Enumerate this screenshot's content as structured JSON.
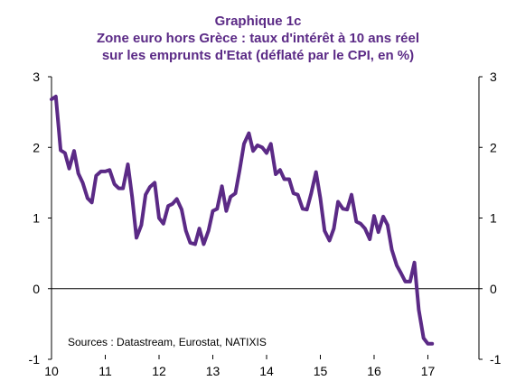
{
  "chart_data": {
    "type": "line",
    "title_lines": [
      "Graphique 1c",
      "Zone euro hors Grèce : taux d'intérêt à 10 ans réel",
      "sur les emprunts d'Etat (déflaté par le CPI, en %)"
    ],
    "source": "Sources : Datastream, Eurostat, NATIXIS",
    "x_tick_labels": [
      "10",
      "11",
      "12",
      "13",
      "14",
      "15",
      "16",
      "17"
    ],
    "y_tick_labels": [
      "3",
      "2",
      "1",
      "0",
      "-1"
    ],
    "y_ticks": [
      3,
      2,
      1,
      0,
      -1
    ],
    "xlim": [
      2010.0,
      2017.95
    ],
    "ylim": [
      -1,
      3
    ],
    "grid": false,
    "series": [
      {
        "color": "#5b2a86",
        "x": [
          2010.0,
          2010.08,
          2010.17,
          2010.25,
          2010.33,
          2010.42,
          2010.5,
          2010.58,
          2010.67,
          2010.75,
          2010.83,
          2010.92,
          2011.0,
          2011.08,
          2011.17,
          2011.25,
          2011.33,
          2011.42,
          2011.5,
          2011.58,
          2011.67,
          2011.75,
          2011.83,
          2011.92,
          2012.0,
          2012.08,
          2012.17,
          2012.25,
          2012.33,
          2012.42,
          2012.5,
          2012.58,
          2012.67,
          2012.75,
          2012.83,
          2012.92,
          2013.0,
          2013.08,
          2013.17,
          2013.25,
          2013.33,
          2013.42,
          2013.5,
          2013.58,
          2013.67,
          2013.75,
          2013.83,
          2013.92,
          2014.0,
          2014.08,
          2014.17,
          2014.25,
          2014.33,
          2014.42,
          2014.5,
          2014.58,
          2014.67,
          2014.75,
          2014.83,
          2014.92,
          2015.0,
          2015.08,
          2015.17,
          2015.25,
          2015.33,
          2015.42,
          2015.5,
          2015.58,
          2015.67,
          2015.75,
          2015.83,
          2015.92,
          2016.0,
          2016.08,
          2016.17,
          2016.25,
          2016.33,
          2016.42,
          2016.5,
          2016.58,
          2016.67,
          2016.75,
          2016.83,
          2016.92,
          2017.0,
          2017.08
        ],
        "values": [
          2.68,
          2.72,
          1.96,
          1.92,
          1.7,
          1.95,
          1.63,
          1.5,
          1.28,
          1.22,
          1.6,
          1.66,
          1.66,
          1.68,
          1.48,
          1.42,
          1.42,
          1.76,
          1.3,
          0.72,
          0.9,
          1.33,
          1.44,
          1.5,
          1.0,
          0.92,
          1.17,
          1.2,
          1.27,
          1.12,
          0.82,
          0.65,
          0.63,
          0.85,
          0.63,
          0.82,
          1.1,
          1.13,
          1.45,
          1.1,
          1.3,
          1.35,
          1.68,
          2.05,
          2.2,
          1.95,
          2.03,
          2.0,
          1.92,
          2.05,
          1.62,
          1.68,
          1.55,
          1.55,
          1.35,
          1.33,
          1.13,
          1.12,
          1.35,
          1.65,
          1.28,
          0.82,
          0.68,
          0.85,
          1.23,
          1.13,
          1.12,
          1.33,
          0.95,
          0.92,
          0.85,
          0.7,
          1.03,
          0.8,
          1.02,
          0.9,
          0.55,
          0.33,
          0.22,
          0.1,
          0.1,
          0.37,
          -0.3,
          -0.7,
          -0.78,
          -0.78
        ]
      }
    ]
  }
}
